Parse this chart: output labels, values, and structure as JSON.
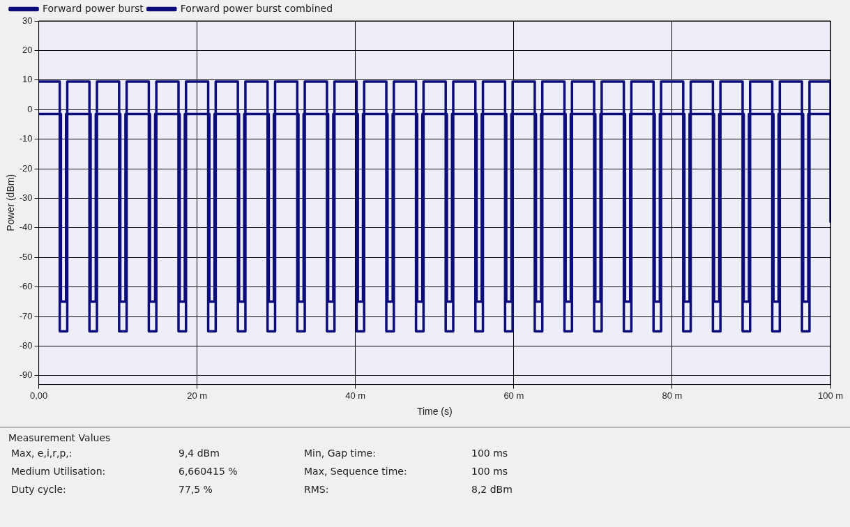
{
  "chart_data": {
    "type": "step",
    "xlabel": "Time (s)",
    "ylabel": "Power (dBm)",
    "legend": "top",
    "grid": true,
    "line_style": "solid",
    "marker": "none",
    "xlim": [
      0,
      100
    ],
    "ylim": [
      -93,
      30
    ],
    "xticks": [
      {
        "value": 0,
        "label": "0,00"
      },
      {
        "value": 20,
        "label": "20 m"
      },
      {
        "value": 40,
        "label": "40 m"
      },
      {
        "value": 60,
        "label": "60 m"
      },
      {
        "value": 80,
        "label": "80 m"
      },
      {
        "value": 100,
        "label": "100 m"
      }
    ],
    "yticks": [
      -90,
      -80,
      -70,
      -60,
      -50,
      -40,
      -30,
      -20,
      -10,
      0,
      10,
      20,
      30
    ],
    "series": [
      {
        "name": "Forward power burst",
        "color": "#0c0c7a",
        "x": [
          0,
          2.65,
          3.6,
          6.4,
          7.35,
          10.15,
          11.1,
          13.9,
          14.85,
          17.65,
          18.6,
          21.4,
          22.35,
          25.15,
          26.1,
          28.9,
          29.85,
          32.65,
          33.6,
          36.4,
          37.35,
          40.15,
          41.1,
          43.9,
          44.85,
          47.65,
          48.6,
          51.4,
          52.35,
          55.15,
          56.1,
          58.9,
          59.85,
          62.65,
          63.6,
          66.4,
          67.35,
          70.15,
          71.1,
          73.9,
          74.85,
          77.65,
          78.6,
          81.4,
          82.35,
          85.15,
          86.1,
          88.9,
          89.85,
          92.65,
          93.6,
          96.4,
          97.35,
          100
        ],
        "values": [
          9.5,
          -75,
          9.5,
          -75,
          9.5,
          -75,
          9.5,
          -75,
          9.5,
          -75,
          9.5,
          -75,
          9.5,
          -75,
          9.5,
          -75,
          9.5,
          -75,
          9.5,
          -75,
          9.5,
          -75,
          9.5,
          -75,
          9.5,
          -75,
          9.5,
          -75,
          9.5,
          -75,
          9.5,
          -75,
          9.5,
          -75,
          9.5,
          -75,
          9.5,
          -75,
          9.5,
          -75,
          9.5,
          -75,
          9.5,
          -75,
          9.5,
          -75,
          9.5,
          -75,
          9.5,
          -75,
          9.5,
          -75,
          9.5,
          -38
        ]
      },
      {
        "name": "Forward power burst combined",
        "color": "#0c0c7a",
        "x": [
          0,
          2.8,
          3.45,
          6.55,
          7.2,
          10.3,
          10.95,
          14.05,
          14.7,
          17.8,
          18.45,
          21.55,
          22.2,
          25.3,
          25.95,
          29.05,
          29.7,
          32.8,
          33.45,
          36.55,
          37.2,
          40.3,
          40.95,
          44.05,
          44.7,
          47.8,
          48.45,
          51.55,
          52.2,
          55.3,
          55.95,
          59.05,
          59.7,
          62.8,
          63.45,
          66.55,
          67.2,
          70.3,
          70.95,
          74.05,
          74.7,
          77.8,
          78.45,
          81.55,
          82.2,
          85.3,
          85.95,
          89.05,
          89.7,
          92.8,
          93.45,
          96.55,
          97.2,
          100
        ],
        "values": [
          -1.5,
          -65,
          -1.5,
          -65,
          -1.5,
          -65,
          -1.5,
          -65,
          -1.5,
          -65,
          -1.5,
          -65,
          -1.5,
          -65,
          -1.5,
          -65,
          -1.5,
          -65,
          -1.5,
          -65,
          -1.5,
          -65,
          -1.5,
          -65,
          -1.5,
          -65,
          -1.5,
          -65,
          -1.5,
          -65,
          -1.5,
          -65,
          -1.5,
          -65,
          -1.5,
          -65,
          -1.5,
          -65,
          -1.5,
          -65,
          -1.5,
          -65,
          -1.5,
          -65,
          -1.5,
          -65,
          -1.5,
          -65,
          -1.5,
          -65,
          -1.5,
          -65,
          -1.5,
          -1.5
        ]
      }
    ],
    "annotations": [
      "Measurement Values",
      "Max, e,i,r,p,:",
      "9,4 dBm",
      "Min, Gap time:",
      "100 ms",
      "Medium Utilisation:",
      "6,660415 %",
      "Max, Sequence time:",
      "100 ms",
      "Duty cycle:",
      "77,5 %",
      "RMS:",
      "8,2 dBm"
    ]
  }
}
